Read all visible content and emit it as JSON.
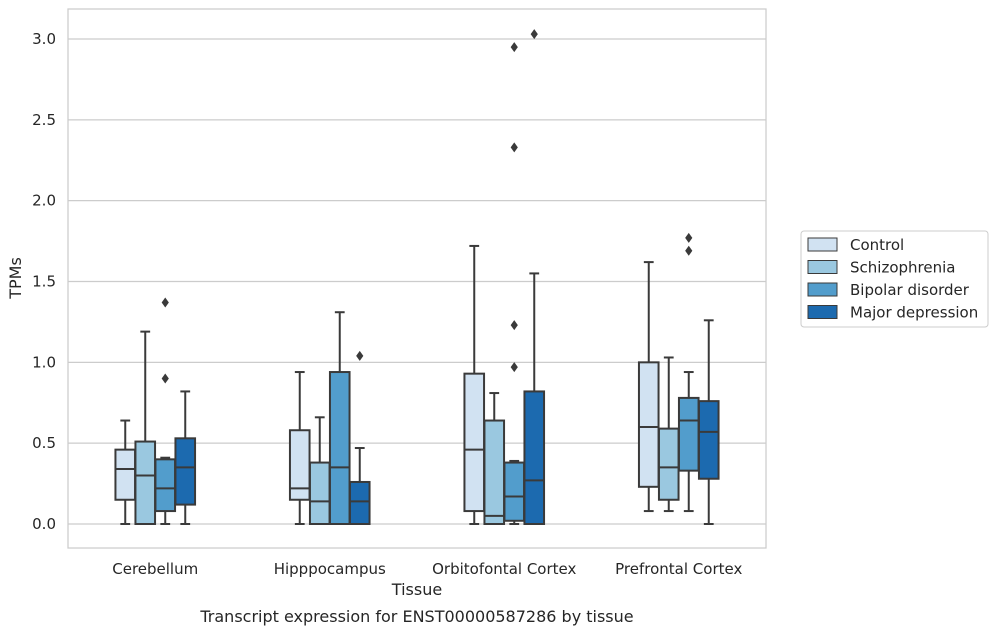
{
  "chart_data": {
    "type": "box",
    "xlabel": "Tissue",
    "ylabel": "TPMs",
    "caption": "Transcript expression for ENST00000587286 by tissue",
    "ylim": [
      -0.15,
      3.2
    ],
    "yticks": [
      0.0,
      0.5,
      1.0,
      1.5,
      2.0,
      2.5,
      3.0
    ],
    "ytick_labels": [
      "0.0",
      "0.5",
      "1.0",
      "1.5",
      "2.0",
      "2.5",
      "3.0"
    ],
    "grid": "horizontal",
    "legend_position": "right",
    "categories": [
      "Cerebellum",
      "Hipppocampus",
      "Orbitofontal Cortex",
      "Prefrontal Cortex"
    ],
    "series": [
      {
        "name": "Control",
        "color": "#d1e2f2",
        "boxes": [
          {
            "whislo": 0.0,
            "q1": 0.15,
            "med": 0.34,
            "q3": 0.46,
            "whishi": 0.64,
            "fliers": []
          },
          {
            "whislo": 0.0,
            "q1": 0.15,
            "med": 0.22,
            "q3": 0.58,
            "whishi": 0.94,
            "fliers": []
          },
          {
            "whislo": 0.0,
            "q1": 0.08,
            "med": 0.46,
            "q3": 0.93,
            "whishi": 1.72,
            "fliers": []
          },
          {
            "whislo": 0.08,
            "q1": 0.23,
            "med": 0.6,
            "q3": 1.0,
            "whishi": 1.62,
            "fliers": []
          }
        ]
      },
      {
        "name": "Schizophrenia",
        "color": "#9ac8e0",
        "boxes": [
          {
            "whislo": 0.0,
            "q1": 0.0,
            "med": 0.3,
            "q3": 0.51,
            "whishi": 1.19,
            "fliers": []
          },
          {
            "whislo": 0.0,
            "q1": 0.0,
            "med": 0.14,
            "q3": 0.38,
            "whishi": 0.66,
            "fliers": []
          },
          {
            "whislo": 0.0,
            "q1": 0.0,
            "med": 0.05,
            "q3": 0.64,
            "whishi": 0.81,
            "fliers": []
          },
          {
            "whislo": 0.08,
            "q1": 0.15,
            "med": 0.35,
            "q3": 0.59,
            "whishi": 1.03,
            "fliers": []
          }
        ]
      },
      {
        "name": "Bipolar disorder",
        "color": "#529dcc",
        "boxes": [
          {
            "whislo": 0.0,
            "q1": 0.08,
            "med": 0.22,
            "q3": 0.4,
            "whishi": 0.41,
            "fliers": [
              0.9,
              1.37
            ]
          },
          {
            "whislo": 0.0,
            "q1": 0.0,
            "med": 0.35,
            "q3": 0.94,
            "whishi": 1.31,
            "fliers": []
          },
          {
            "whislo": 0.0,
            "q1": 0.02,
            "med": 0.17,
            "q3": 0.38,
            "whishi": 0.39,
            "fliers": [
              0.97,
              1.23,
              2.33,
              2.95
            ]
          },
          {
            "whislo": 0.08,
            "q1": 0.33,
            "med": 0.64,
            "q3": 0.78,
            "whishi": 0.94,
            "fliers": [
              1.69,
              1.77
            ]
          }
        ]
      },
      {
        "name": "Major depression",
        "color": "#1c6aaf",
        "boxes": [
          {
            "whislo": 0.0,
            "q1": 0.12,
            "med": 0.35,
            "q3": 0.53,
            "whishi": 0.82,
            "fliers": []
          },
          {
            "whislo": 0.0,
            "q1": 0.0,
            "med": 0.14,
            "q3": 0.26,
            "whishi": 0.47,
            "fliers": [
              1.04
            ]
          },
          {
            "whislo": 0.0,
            "q1": 0.0,
            "med": 0.27,
            "q3": 0.82,
            "whishi": 1.55,
            "fliers": [
              3.03
            ]
          },
          {
            "whislo": 0.0,
            "q1": 0.28,
            "med": 0.57,
            "q3": 0.76,
            "whishi": 1.26,
            "fliers": []
          }
        ]
      }
    ]
  }
}
